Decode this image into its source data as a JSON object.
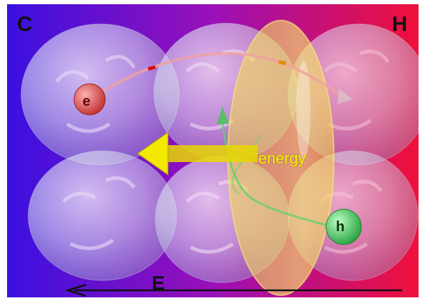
{
  "labels": {
    "cold_side": "C",
    "hot_side": "H",
    "axis": "E",
    "energy": "energy",
    "electron": "e",
    "hole": "h"
  },
  "colors": {
    "gradient_left": "#3a10e0",
    "gradient_mid": "#9a10b8",
    "gradient_right": "#f0103a",
    "energy_ellipse": "#f2d848",
    "energy_arrow": "#e8d800",
    "electron": "#e05050",
    "hole": "#40c060",
    "axis_arrow": "#111111"
  },
  "icons": {
    "electron_particle": "red-sphere",
    "hole_particle": "green-sphere",
    "energy_flow": "yellow-arrow-left"
  }
}
